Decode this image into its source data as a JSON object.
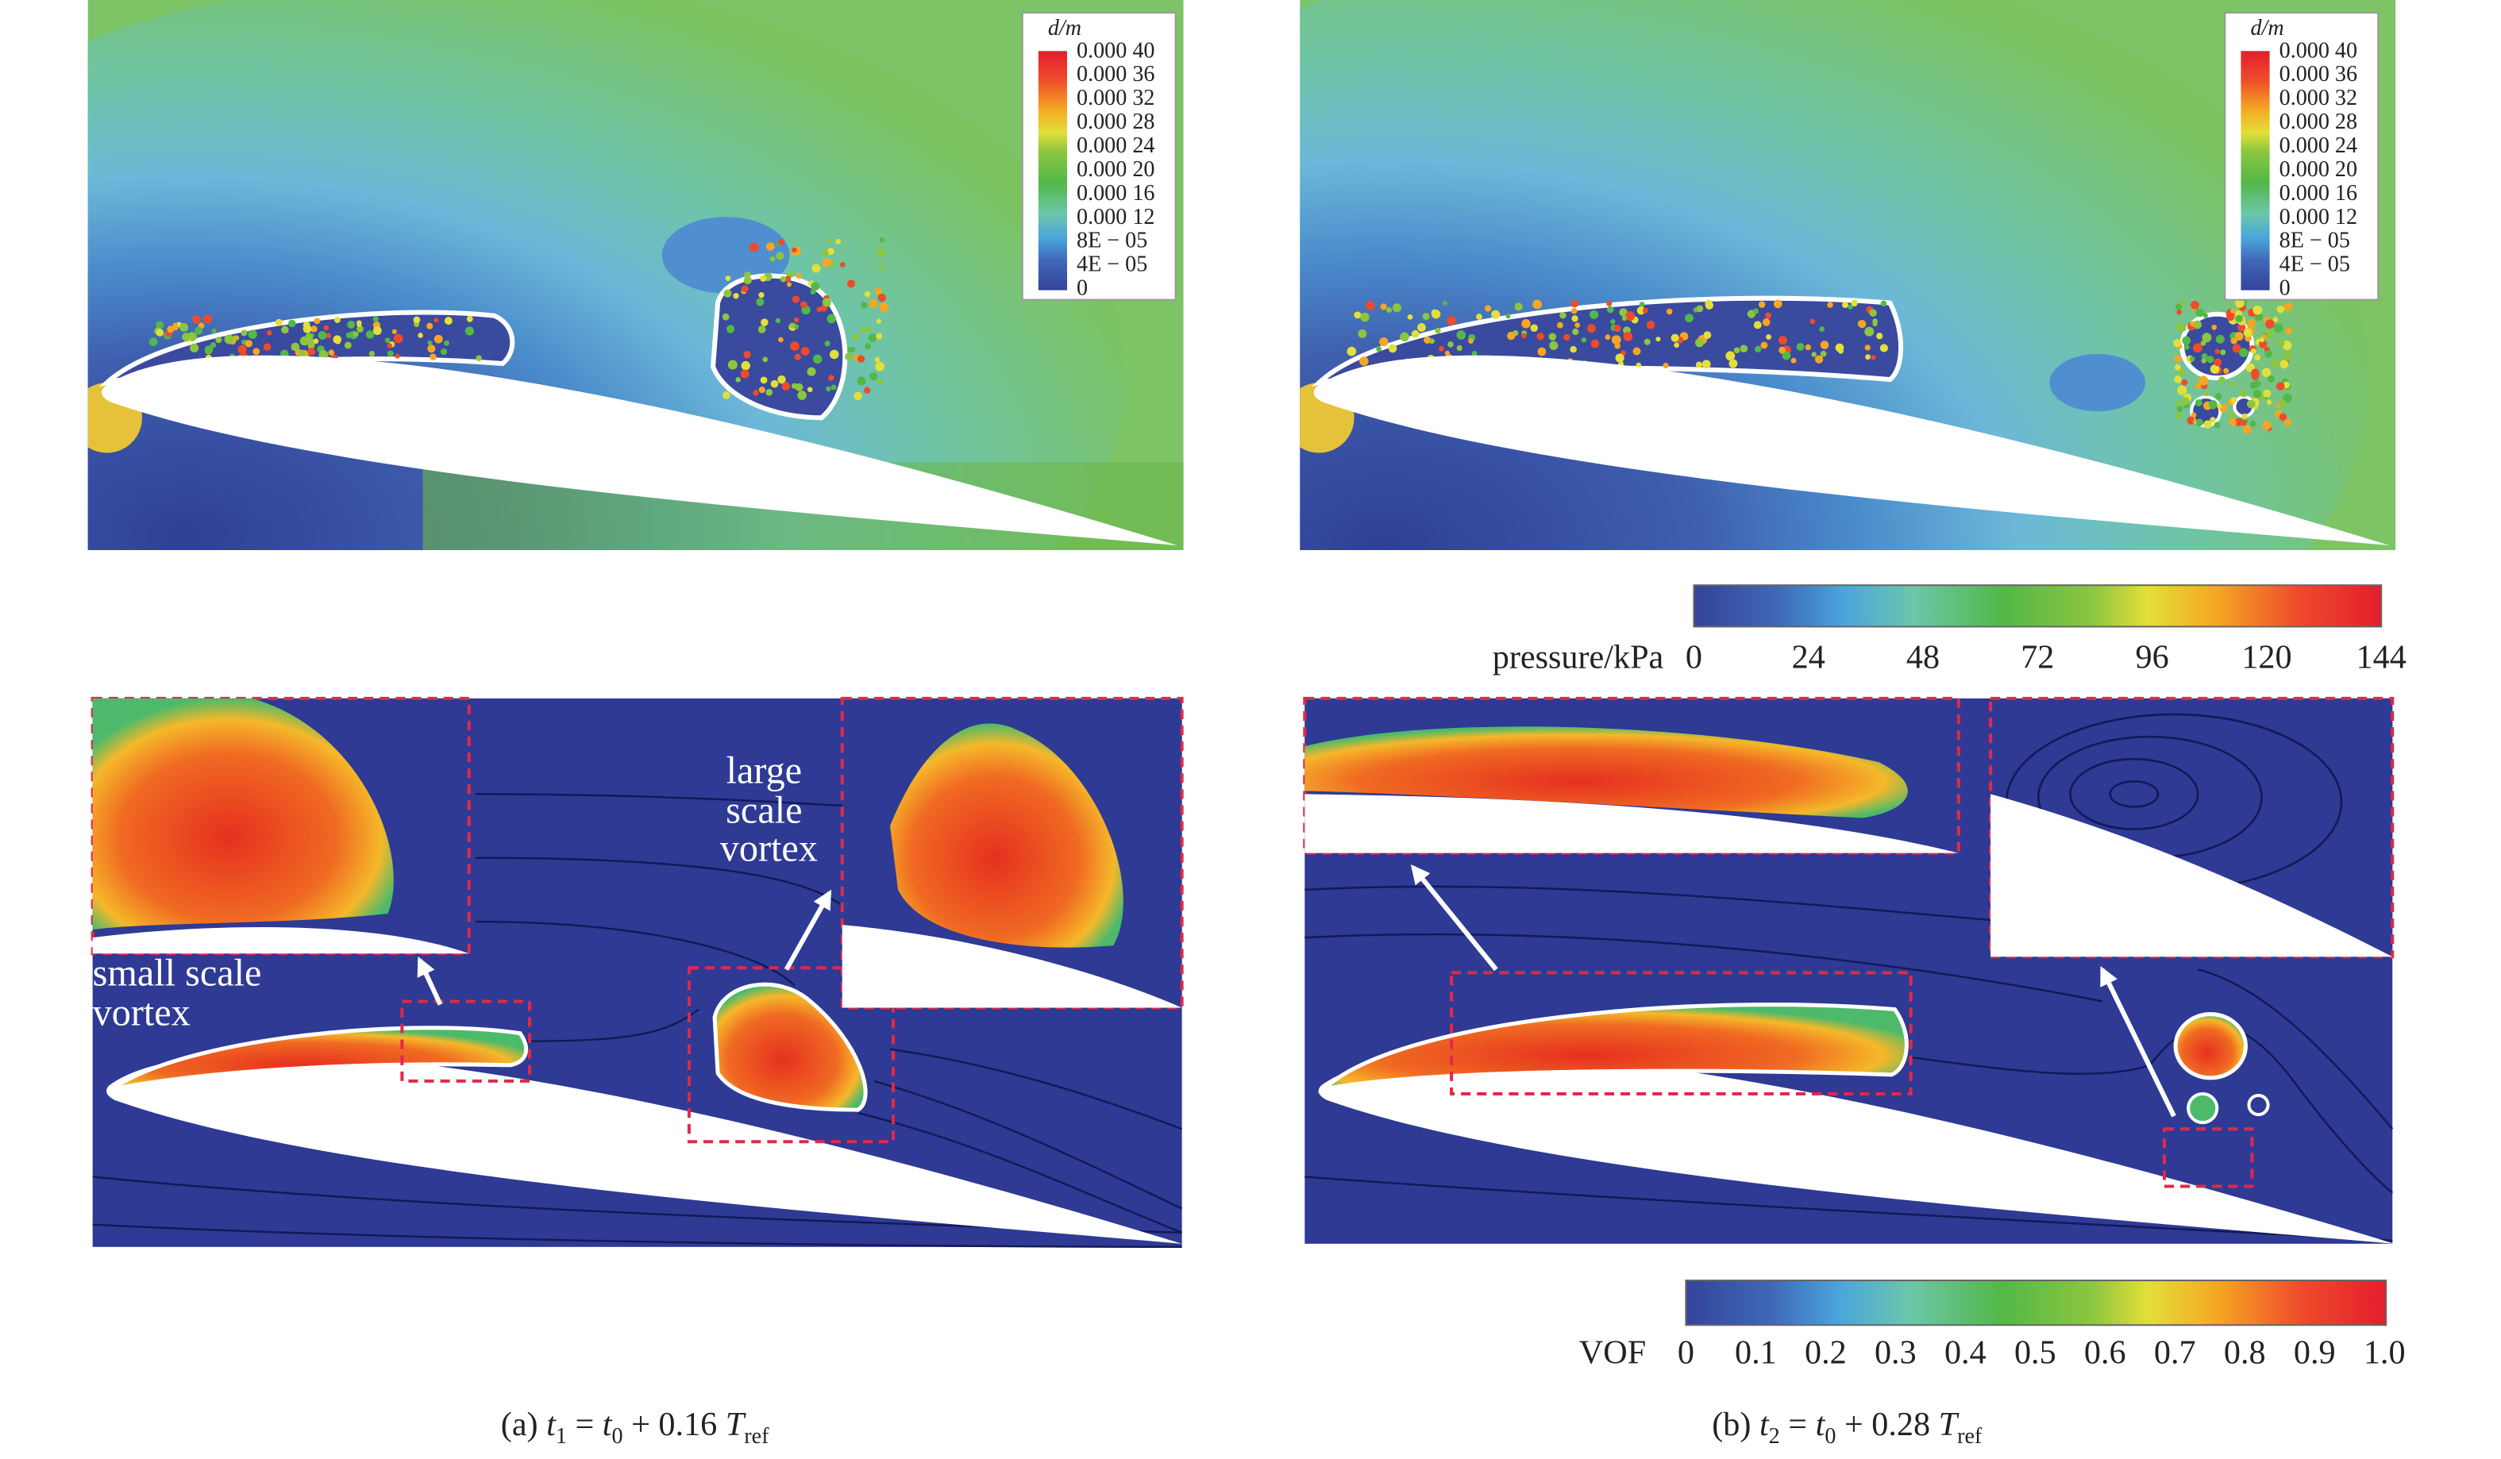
{
  "panels": [
    {
      "legend": {
        "title": "d/m",
        "labels": [
          "0.000 40",
          "0.000 36",
          "0.000 32",
          "0.000 28",
          "0.000 24",
          "0.000 20",
          "0.000 16",
          "0.000 12",
          "8E − 05",
          "4E − 05",
          "0"
        ]
      }
    },
    {
      "legend": {
        "title": "d/m",
        "labels": [
          "0.000 40",
          "0.000 36",
          "0.000 32",
          "0.000 28",
          "0.000 24",
          "0.000 20",
          "0.000 16",
          "0.000 12",
          "8E − 05",
          "4E − 05",
          "0"
        ]
      }
    }
  ],
  "pressure_colorbar": {
    "label": "pressure/kPa",
    "ticks": [
      "0",
      "24",
      "48",
      "72",
      "96",
      "120",
      "144"
    ]
  },
  "vof_colorbar": {
    "label": "VOF",
    "ticks": [
      "0",
      "0.1",
      "0.2",
      "0.3",
      "0.4",
      "0.5",
      "0.6",
      "0.7",
      "0.8",
      "0.9",
      "1.0"
    ]
  },
  "annotations": {
    "small_vortex": [
      "small scale",
      "vortex"
    ],
    "large_vortex": [
      "large",
      "scale",
      "vortex"
    ]
  },
  "captions": [
    [
      "(a) ",
      "t",
      "1",
      " = ",
      "t",
      "0",
      " + 0.16 ",
      "T",
      "ref"
    ],
    [
      "(b) ",
      "t",
      "2",
      " = ",
      "t",
      "0",
      " + 0.28 ",
      "T",
      "ref"
    ]
  ]
}
